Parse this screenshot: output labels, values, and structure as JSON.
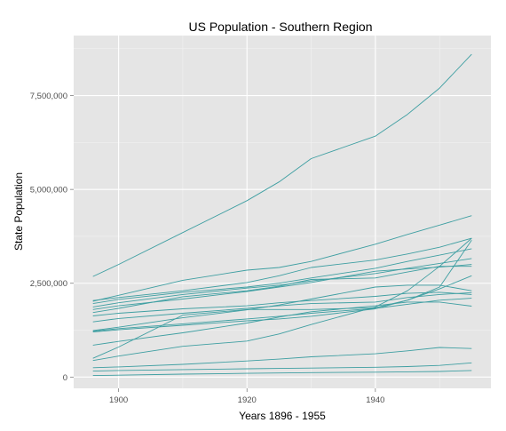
{
  "chart_data": {
    "type": "line",
    "title": "US Population - Southern Region",
    "xlabel": "Years 1896 - 1955",
    "ylabel": "State Population",
    "xlim": [
      1893,
      1958
    ],
    "ylim": [
      -300000,
      9100000
    ],
    "x_ticks": [
      1900,
      1920,
      1940
    ],
    "x_tick_labels": [
      "1900",
      "1920",
      "1940"
    ],
    "y_ticks": [
      0,
      2500000,
      5000000,
      7500000
    ],
    "y_tick_labels": [
      "0",
      "2,500,000",
      "5,000,000",
      "7,500,000"
    ],
    "grid": true,
    "legend": "none",
    "line_color": "#3f9fa2",
    "panel_background": "#e5e5e5",
    "x": [
      1896,
      1900,
      1910,
      1920,
      1925,
      1930,
      1940,
      1945,
      1950,
      1955
    ],
    "series": [
      {
        "values": [
          2680000,
          3000000,
          3850000,
          4700000,
          5200000,
          5820000,
          6420000,
          7000000,
          7700000,
          8600000
        ]
      },
      {
        "values": [
          2020000,
          2180000,
          2580000,
          2850000,
          2920000,
          3080000,
          3540000,
          3800000,
          4050000,
          4300000
        ]
      },
      {
        "values": [
          2040000,
          2120000,
          2300000,
          2520000,
          2700000,
          2920000,
          3120000,
          3280000,
          3460000,
          3700000
        ]
      },
      {
        "values": [
          1960000,
          2070000,
          2260000,
          2400000,
          2500000,
          2640000,
          2900000,
          3080000,
          3250000,
          3420000
        ]
      },
      {
        "values": [
          1870000,
          1980000,
          2200000,
          2370000,
          2450000,
          2560000,
          2760000,
          2900000,
          3030000,
          3160000
        ]
      },
      {
        "values": [
          1800000,
          1900000,
          2080000,
          2280000,
          2400000,
          2520000,
          2820000,
          2880000,
          2930000,
          3000000
        ]
      },
      {
        "values": [
          1720000,
          1830000,
          2140000,
          2300000,
          2420000,
          2600000,
          2640000,
          2800000,
          2950000,
          2950000
        ]
      },
      {
        "values": [
          1630000,
          1700000,
          1820000,
          1900000,
          1980000,
          2040000,
          2150000,
          2230000,
          2260000,
          2200000
        ]
      },
      {
        "values": [
          1470000,
          1560000,
          1700000,
          1830000,
          1900000,
          1960000,
          2000000,
          2120000,
          2200000,
          2250000
        ]
      },
      {
        "values": [
          1240000,
          1330000,
          1580000,
          1790000,
          1920000,
          2080000,
          2400000,
          2450000,
          2450000,
          2300000
        ]
      },
      {
        "values": [
          1220000,
          1290000,
          1420000,
          1550000,
          1620000,
          1700000,
          1830000,
          1940000,
          2050000,
          2100000
        ]
      },
      {
        "values": [
          850000,
          950000,
          1180000,
          1440000,
          1600000,
          1740000,
          1900000,
          2000000,
          2000000,
          1890000
        ]
      },
      {
        "values": [
          1200000,
          1260000,
          1380000,
          1500000,
          1550000,
          1620000,
          1820000,
          2050000,
          2350000,
          2700000
        ]
      },
      {
        "values": [
          500000,
          800000,
          1650000,
          1800000,
          1800000,
          1800000,
          1850000,
          2050000,
          2400000,
          3650000
        ]
      },
      {
        "values": [
          440000,
          560000,
          820000,
          960000,
          1150000,
          1400000,
          1870000,
          2300000,
          2950000,
          3700000
        ]
      },
      {
        "values": [
          250000,
          270000,
          340000,
          430000,
          480000,
          540000,
          620000,
          700000,
          790000,
          760000
        ]
      },
      {
        "values": [
          160000,
          175000,
          200000,
          220000,
          230000,
          240000,
          260000,
          280000,
          310000,
          380000
        ]
      },
      {
        "values": [
          40000,
          50000,
          80000,
          100000,
          110000,
          120000,
          130000,
          140000,
          150000,
          175000
        ]
      }
    ]
  }
}
